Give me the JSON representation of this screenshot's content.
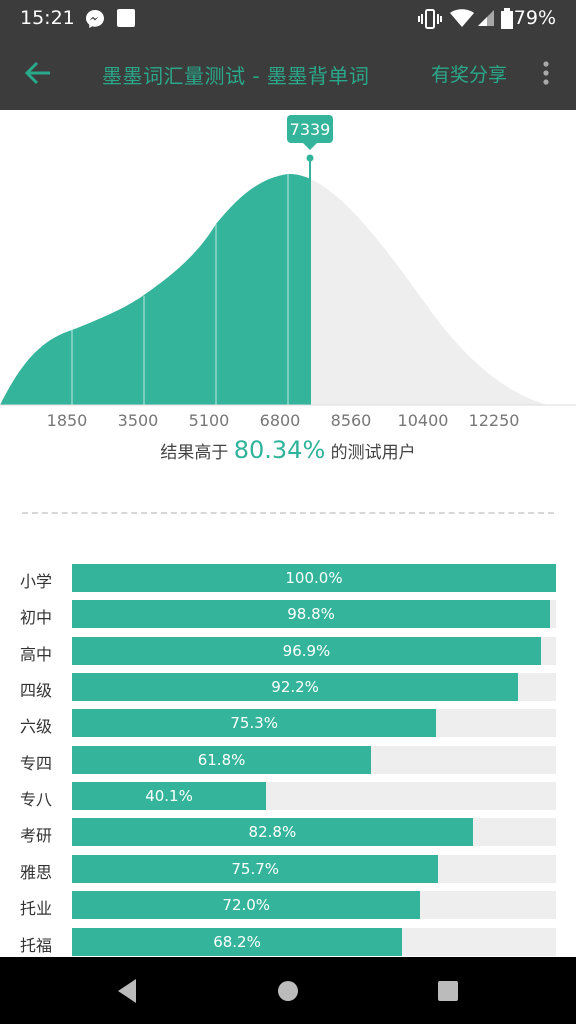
{
  "status_bar": {
    "time": "15:21",
    "battery": "79%"
  },
  "app_bar": {
    "title": "墨墨词汇量测试 - 墨墨背单词",
    "share": "有奖分享"
  },
  "score": {
    "value": "7339"
  },
  "axis_labels": [
    "1850",
    "3500",
    "5100",
    "6800",
    "8560",
    "10400",
    "12250"
  ],
  "result": {
    "prefix": "结果高于 ",
    "percent": "80.34%",
    "suffix": " 的测试用户"
  },
  "levels": [
    {
      "label": "小学",
      "percent": 100.0,
      "text": "100.0%"
    },
    {
      "label": "初中",
      "percent": 98.8,
      "text": "98.8%"
    },
    {
      "label": "高中",
      "percent": 96.9,
      "text": "96.9%"
    },
    {
      "label": "四级",
      "percent": 92.2,
      "text": "92.2%"
    },
    {
      "label": "六级",
      "percent": 75.3,
      "text": "75.3%"
    },
    {
      "label": "专四",
      "percent": 61.8,
      "text": "61.8%"
    },
    {
      "label": "专八",
      "percent": 40.1,
      "text": "40.1%"
    },
    {
      "label": "考研",
      "percent": 82.8,
      "text": "82.8%"
    },
    {
      "label": "雅思",
      "percent": 75.7,
      "text": "75.7%"
    },
    {
      "label": "托业",
      "percent": 72.0,
      "text": "72.0%"
    },
    {
      "label": "托福",
      "percent": 68.2,
      "text": "68.2%"
    }
  ],
  "colors": {
    "accent": "#34b49a",
    "title": "#2aa88a",
    "track": "#eeeeee",
    "bar": "#3c3c3c"
  }
}
